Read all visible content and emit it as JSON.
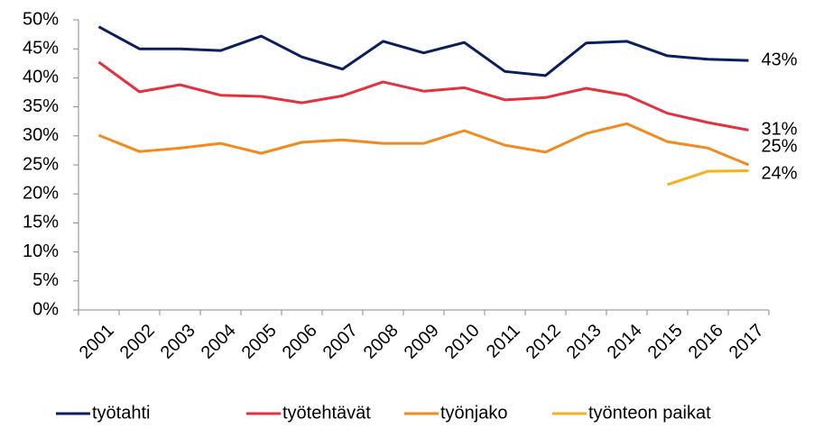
{
  "chart_data": {
    "type": "line",
    "categories": [
      "2001",
      "2002",
      "2003",
      "2004",
      "2005",
      "2006",
      "2007",
      "2008",
      "2009",
      "2010",
      "2011",
      "2012",
      "2013",
      "2014",
      "2015",
      "2016",
      "2017"
    ],
    "series": [
      {
        "name": "työtahti",
        "color": "#0b1f5e",
        "values": [
          48.8,
          45,
          45,
          44.7,
          47.2,
          43.6,
          41.5,
          46.3,
          44.3,
          46.1,
          41.1,
          40.4,
          46,
          46.3,
          43.8,
          43.2,
          43
        ],
        "value_labels": [
          null,
          null,
          null,
          null,
          null,
          null,
          null,
          null,
          null,
          null,
          null,
          null,
          null,
          null,
          null,
          null,
          "43%"
        ]
      },
      {
        "name": "työtehtävät",
        "color": "#e5303e",
        "values": [
          42.7,
          37.6,
          38.8,
          37,
          36.8,
          35.7,
          36.9,
          39.3,
          37.7,
          38.3,
          36.2,
          36.6,
          38.2,
          37,
          33.9,
          32.3,
          31
        ],
        "value_labels": [
          null,
          null,
          null,
          null,
          null,
          null,
          null,
          null,
          null,
          null,
          null,
          null,
          null,
          null,
          null,
          null,
          "31%"
        ]
      },
      {
        "name": "työnjako",
        "color": "#f28a1e",
        "values": [
          30.1,
          27.3,
          27.9,
          28.7,
          27,
          28.9,
          29.3,
          28.7,
          28.7,
          30.9,
          28.4,
          27.2,
          30.4,
          32.1,
          29,
          27.9,
          25
        ],
        "value_labels": [
          null,
          null,
          null,
          null,
          null,
          null,
          null,
          null,
          null,
          null,
          null,
          null,
          null,
          null,
          null,
          null,
          "25%"
        ]
      },
      {
        "name": "työnteon paikat",
        "color": "#f5b21e",
        "values": [
          null,
          null,
          null,
          null,
          null,
          null,
          null,
          null,
          null,
          null,
          null,
          null,
          null,
          null,
          21.6,
          23.9,
          24
        ],
        "value_labels": [
          null,
          null,
          null,
          null,
          null,
          null,
          null,
          null,
          null,
          null,
          null,
          null,
          null,
          null,
          null,
          null,
          "24%"
        ]
      }
    ],
    "ylim": [
      0,
      50
    ],
    "yticks": [
      {
        "value": 0,
        "label": "0%"
      },
      {
        "value": 5,
        "label": "5%"
      },
      {
        "value": 10,
        "label": "10%"
      },
      {
        "value": 15,
        "label": "15%"
      },
      {
        "value": 20,
        "label": "20%"
      },
      {
        "value": 25,
        "label": "25%"
      },
      {
        "value": 30,
        "label": "30%"
      },
      {
        "value": 35,
        "label": "35%"
      },
      {
        "value": 40,
        "label": "40%"
      },
      {
        "value": 45,
        "label": "45%"
      },
      {
        "value": 50,
        "label": "50%"
      }
    ],
    "grid": false,
    "legend": "bottom"
  }
}
